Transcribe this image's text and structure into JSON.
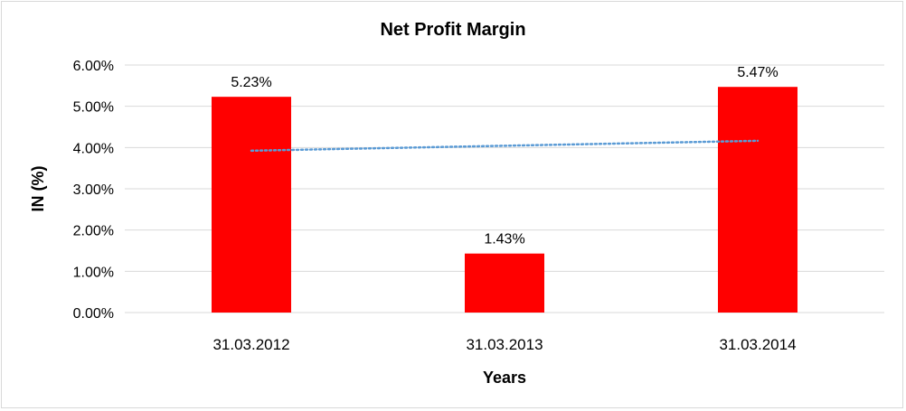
{
  "chart_data": {
    "type": "bar",
    "title": "Net Profit Margin",
    "xlabel": "Years",
    "ylabel": "IN (%)",
    "categories": [
      "31.03.2012",
      "31.03.2013",
      "31.03.2014"
    ],
    "values": [
      5.23,
      1.43,
      5.47
    ],
    "data_labels": [
      "5.23%",
      "1.43%",
      "5.47%"
    ],
    "ylim": [
      0,
      6
    ],
    "yticks": [
      0,
      1,
      2,
      3,
      4,
      5,
      6
    ],
    "ytick_labels": [
      "0.00%",
      "1.00%",
      "2.00%",
      "3.00%",
      "4.00%",
      "5.00%",
      "6.00%"
    ],
    "grid": true,
    "trendline": {
      "type": "linear",
      "style": "dotted",
      "color": "#5b9bd5"
    },
    "bar_color": "#ff0000",
    "legend": "none"
  }
}
